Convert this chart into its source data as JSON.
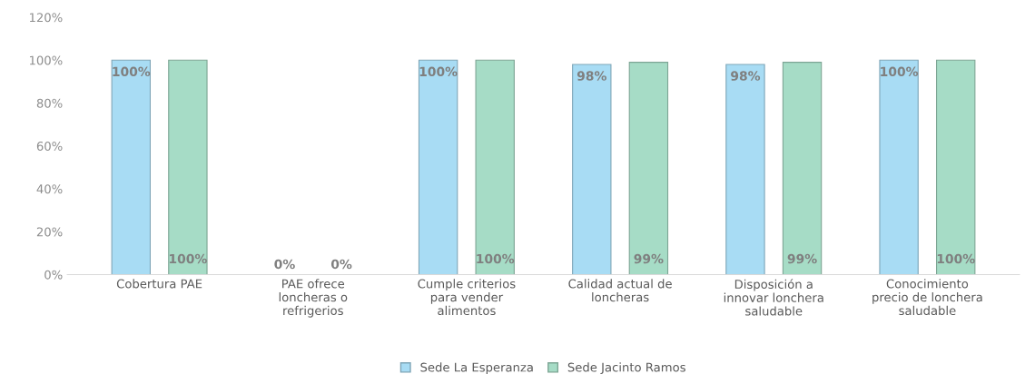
{
  "chart_data": {
    "type": "bar",
    "categories": [
      "Cobertura PAE",
      "PAE ofrece loncheras o refrigerios",
      "Cumple criterios para vender alimentos",
      "Calidad actual de loncheras",
      "Disposición a innovar lonchera saludable",
      "Conocimiento precio de lonchera saludable"
    ],
    "series": [
      {
        "name": "Sede La Esperanza",
        "color": "#a8dcf4",
        "values": [
          100,
          0,
          100,
          98,
          98,
          100
        ],
        "value_labels": [
          "100%",
          "0%",
          "100%",
          "98%",
          "98%",
          "100%"
        ]
      },
      {
        "name": "Sede Jacinto Ramos",
        "color": "#a6dcc6",
        "values": [
          100,
          0,
          100,
          99,
          99,
          100
        ],
        "value_labels": [
          "100%",
          "0%",
          "100%",
          "99%",
          "99%",
          "100%"
        ]
      }
    ],
    "ylim": [
      0,
      120
    ],
    "yticks": [
      {
        "value": 0,
        "label": "0%"
      },
      {
        "value": 20,
        "label": "20%"
      },
      {
        "value": 40,
        "label": "40%"
      },
      {
        "value": 60,
        "label": "60%"
      },
      {
        "value": 80,
        "label": "80%"
      },
      {
        "value": 100,
        "label": "100%"
      },
      {
        "value": 120,
        "label": "120%"
      }
    ],
    "grid": false,
    "legend": "bottom"
  }
}
